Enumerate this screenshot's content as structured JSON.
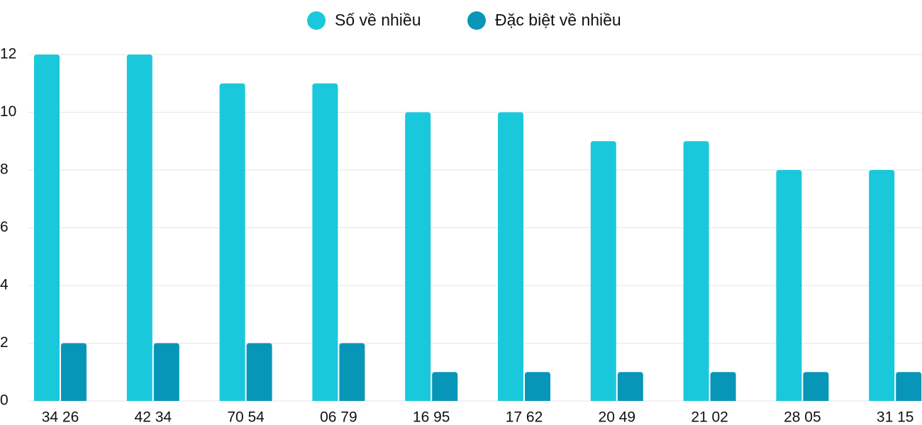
{
  "chart_data": {
    "type": "bar",
    "categories": [
      "34 26",
      "42 34",
      "70 54",
      "06 79",
      "16 95",
      "17 62",
      "20 49",
      "21 02",
      "28 05",
      "31 15"
    ],
    "series": [
      {
        "name": "Số về nhiều",
        "color": "#1ac8dc",
        "values": [
          12,
          12,
          11,
          11,
          10,
          10,
          9,
          9,
          8,
          8
        ]
      },
      {
        "name": "Đặc biệt về nhiều",
        "color": "#0896b8",
        "values": [
          2,
          2,
          2,
          2,
          1,
          1,
          1,
          1,
          1,
          1
        ]
      }
    ],
    "ylim": [
      0,
      12
    ],
    "yticks": [
      0,
      2,
      4,
      6,
      8,
      10,
      12
    ],
    "grid": true,
    "legend": "top"
  }
}
